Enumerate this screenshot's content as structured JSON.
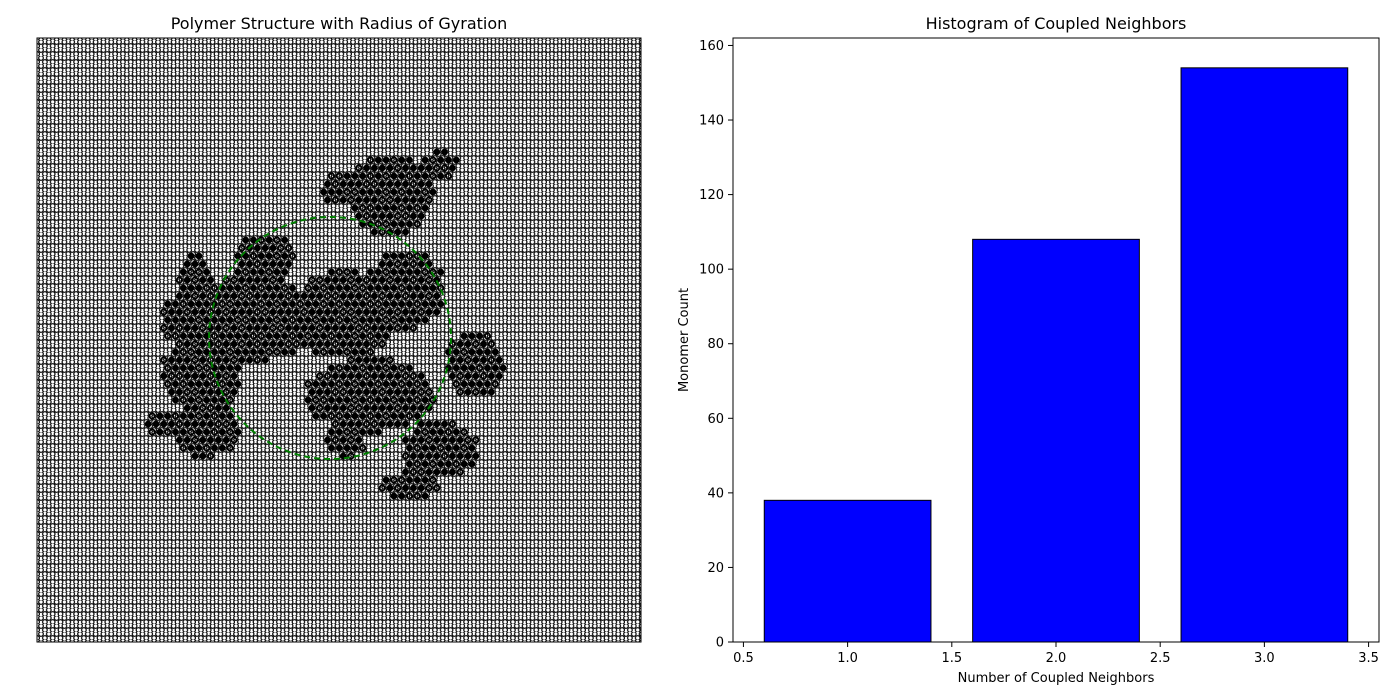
{
  "chart_data": [
    {
      "type": "scatter",
      "title": "Polymer Structure with Radius of Gyration",
      "xlabel": "",
      "ylabel": "",
      "axes_visible": false,
      "lattice": "hexagonal",
      "lattice_color": "#ffffff",
      "lattice_edge_color": "#000000",
      "polymer_color": "#000000",
      "gyration_circle_color": "#008000",
      "gyration_circle_style": "dashed"
    },
    {
      "type": "bar",
      "title": "Histogram of Coupled Neighbors",
      "xlabel": "Number of Coupled Neighbors",
      "ylabel": "Monomer Count",
      "bar_color": "#0000ff",
      "bar_edge_color": "#000000",
      "bars": [
        {
          "x": 1.0,
          "value": 38
        },
        {
          "x": 2.0,
          "value": 108
        },
        {
          "x": 3.0,
          "value": 154
        }
      ],
      "bar_width": 0.8,
      "xlim": [
        0.45,
        3.55
      ],
      "ylim": [
        0,
        162
      ],
      "xticks": [
        0.5,
        1.0,
        1.5,
        2.0,
        2.5,
        3.0,
        3.5
      ],
      "xtick_labels": [
        "0.5",
        "1.0",
        "1.5",
        "2.0",
        "2.5",
        "3.0",
        "3.5"
      ],
      "yticks": [
        0,
        20,
        40,
        60,
        80,
        100,
        120,
        140,
        160
      ],
      "ytick_labels": [
        "0",
        "20",
        "40",
        "60",
        "80",
        "100",
        "120",
        "140",
        "160"
      ],
      "grid": false
    }
  ]
}
